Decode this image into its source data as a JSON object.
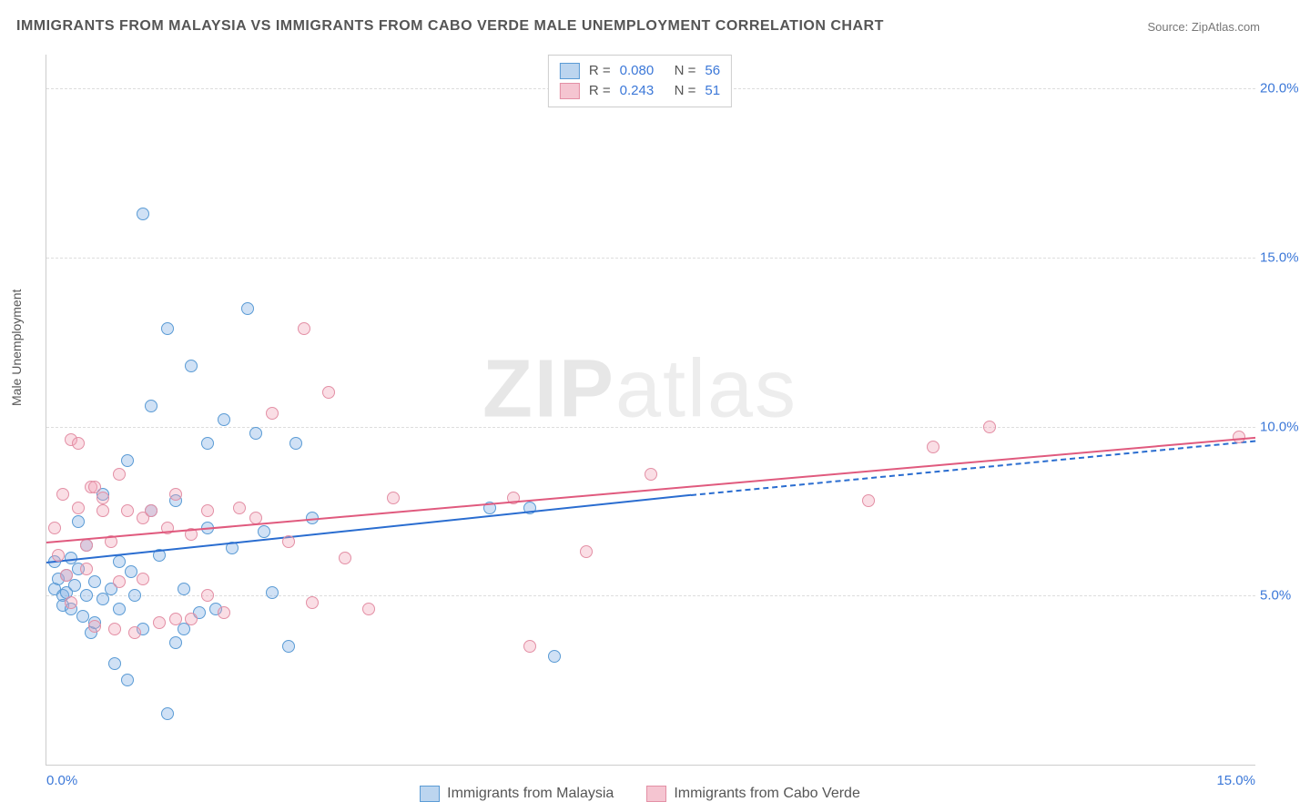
{
  "title": "IMMIGRANTS FROM MALAYSIA VS IMMIGRANTS FROM CABO VERDE MALE UNEMPLOYMENT CORRELATION CHART",
  "source": "Source: ZipAtlas.com",
  "ylabel": "Male Unemployment",
  "watermark_a": "ZIP",
  "watermark_b": "atlas",
  "xlim": [
    0,
    15
  ],
  "ylim": [
    0,
    21
  ],
  "yticks": [
    {
      "v": 5,
      "label": "5.0%"
    },
    {
      "v": 10,
      "label": "10.0%"
    },
    {
      "v": 15,
      "label": "15.0%"
    },
    {
      "v": 20,
      "label": "20.0%"
    }
  ],
  "xticks": [
    {
      "v": 0,
      "label": "0.0%",
      "cls": "first"
    },
    {
      "v": 15,
      "label": "15.0%",
      "cls": "last"
    }
  ],
  "series": [
    {
      "name": "Immigrants from Malaysia",
      "key": "malaysia",
      "fill": "rgba(120,170,225,0.35)",
      "stroke": "#5a9bd5",
      "line_color": "#2a6dd0",
      "swatch_fill": "#bcd5ef",
      "swatch_stroke": "#5a9bd5",
      "R": "0.080",
      "N": "56",
      "reg": {
        "x1": 0,
        "y1": 6.0,
        "x2": 8.0,
        "y2": 8.0,
        "solid": true
      },
      "reg_ext": {
        "x1": 8.0,
        "y1": 8.0,
        "x2": 15,
        "y2": 9.6,
        "solid": false
      },
      "points": [
        [
          0.1,
          5.2
        ],
        [
          0.1,
          6.0
        ],
        [
          0.15,
          5.5
        ],
        [
          0.2,
          5.0
        ],
        [
          0.2,
          4.7
        ],
        [
          0.25,
          5.6
        ],
        [
          0.25,
          5.1
        ],
        [
          0.3,
          4.6
        ],
        [
          0.3,
          6.1
        ],
        [
          0.35,
          5.3
        ],
        [
          0.4,
          5.8
        ],
        [
          0.4,
          7.2
        ],
        [
          0.45,
          4.4
        ],
        [
          0.5,
          5.0
        ],
        [
          0.5,
          6.5
        ],
        [
          0.55,
          3.9
        ],
        [
          0.6,
          5.4
        ],
        [
          0.6,
          4.2
        ],
        [
          0.7,
          4.9
        ],
        [
          0.7,
          8.0
        ],
        [
          0.8,
          5.2
        ],
        [
          0.85,
          3.0
        ],
        [
          0.9,
          6.0
        ],
        [
          0.9,
          4.6
        ],
        [
          1.0,
          2.5
        ],
        [
          1.0,
          9.0
        ],
        [
          1.05,
          5.7
        ],
        [
          1.1,
          5.0
        ],
        [
          1.2,
          4.0
        ],
        [
          1.2,
          16.3
        ],
        [
          1.3,
          7.5
        ],
        [
          1.3,
          10.6
        ],
        [
          1.4,
          6.2
        ],
        [
          1.5,
          1.5
        ],
        [
          1.5,
          12.9
        ],
        [
          1.6,
          3.6
        ],
        [
          1.6,
          7.8
        ],
        [
          1.7,
          4.0
        ],
        [
          1.7,
          5.2
        ],
        [
          1.8,
          11.8
        ],
        [
          1.9,
          4.5
        ],
        [
          2.0,
          9.5
        ],
        [
          2.0,
          7.0
        ],
        [
          2.1,
          4.6
        ],
        [
          2.2,
          10.2
        ],
        [
          2.3,
          6.4
        ],
        [
          2.5,
          13.5
        ],
        [
          2.6,
          9.8
        ],
        [
          2.7,
          6.9
        ],
        [
          2.8,
          5.1
        ],
        [
          3.0,
          3.5
        ],
        [
          3.1,
          9.5
        ],
        [
          3.3,
          7.3
        ],
        [
          5.5,
          7.6
        ],
        [
          6.0,
          7.6
        ],
        [
          6.3,
          3.2
        ]
      ]
    },
    {
      "name": "Immigrants from Cabo Verde",
      "key": "caboverde",
      "fill": "rgba(240,160,180,0.35)",
      "stroke": "#e38fa5",
      "line_color": "#e05a7e",
      "swatch_fill": "#f5c5d1",
      "swatch_stroke": "#e38fa5",
      "R": "0.243",
      "N": "51",
      "reg": {
        "x1": 0,
        "y1": 6.6,
        "x2": 15,
        "y2": 9.7,
        "solid": true
      },
      "points": [
        [
          0.1,
          7.0
        ],
        [
          0.15,
          6.2
        ],
        [
          0.2,
          8.0
        ],
        [
          0.25,
          5.6
        ],
        [
          0.3,
          9.6
        ],
        [
          0.3,
          4.8
        ],
        [
          0.4,
          9.5
        ],
        [
          0.4,
          7.6
        ],
        [
          0.5,
          6.5
        ],
        [
          0.5,
          5.8
        ],
        [
          0.55,
          8.2
        ],
        [
          0.6,
          8.2
        ],
        [
          0.6,
          4.1
        ],
        [
          0.7,
          7.5
        ],
        [
          0.7,
          7.9
        ],
        [
          0.8,
          6.6
        ],
        [
          0.85,
          4.0
        ],
        [
          0.9,
          8.6
        ],
        [
          0.9,
          5.4
        ],
        [
          1.0,
          7.5
        ],
        [
          1.1,
          3.9
        ],
        [
          1.2,
          7.3
        ],
        [
          1.2,
          5.5
        ],
        [
          1.3,
          7.5
        ],
        [
          1.4,
          4.2
        ],
        [
          1.5,
          7.0
        ],
        [
          1.6,
          8.0
        ],
        [
          1.6,
          4.3
        ],
        [
          1.8,
          6.8
        ],
        [
          1.8,
          4.3
        ],
        [
          2.0,
          7.5
        ],
        [
          2.0,
          5.0
        ],
        [
          2.2,
          4.5
        ],
        [
          2.4,
          7.6
        ],
        [
          2.6,
          7.3
        ],
        [
          2.8,
          10.4
        ],
        [
          3.0,
          6.6
        ],
        [
          3.2,
          12.9
        ],
        [
          3.3,
          4.8
        ],
        [
          3.5,
          11.0
        ],
        [
          3.7,
          6.1
        ],
        [
          4.0,
          4.6
        ],
        [
          4.3,
          7.9
        ],
        [
          5.8,
          7.9
        ],
        [
          6.0,
          3.5
        ],
        [
          6.7,
          6.3
        ],
        [
          7.5,
          8.6
        ],
        [
          10.2,
          7.8
        ],
        [
          11.0,
          9.4
        ],
        [
          11.7,
          10.0
        ],
        [
          14.8,
          9.7
        ]
      ]
    }
  ],
  "legend_top": {
    "r_label": "R =",
    "n_label": "N ="
  },
  "bottom_legend_items": [
    {
      "series": 0
    },
    {
      "series": 1
    }
  ]
}
